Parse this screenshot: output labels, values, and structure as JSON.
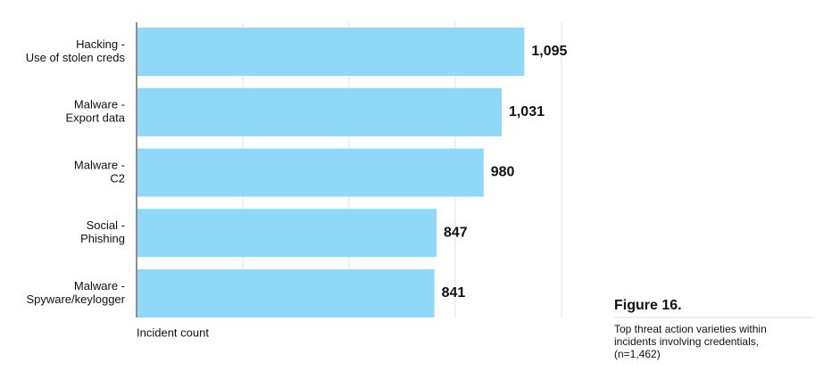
{
  "chart_data": {
    "type": "bar",
    "orientation": "horizontal",
    "categories": [
      [
        "Hacking -",
        "Use of stolen creds"
      ],
      [
        "Malware -",
        "Export data"
      ],
      [
        "Malware -",
        "C2"
      ],
      [
        "Social -",
        "Phishing"
      ],
      [
        "Malware -",
        "Spyware/keylogger"
      ]
    ],
    "values": [
      1095,
      1031,
      980,
      847,
      841
    ],
    "value_labels": [
      "1,095",
      "1,031",
      "980",
      "847",
      "841"
    ],
    "color": "#8fd8f8",
    "xlim": [
      0,
      1200
    ],
    "xticks": [
      0,
      300,
      600,
      900,
      1200
    ],
    "grid": true,
    "xlabel": "Incident count",
    "figure_label": "Figure 16.",
    "caption": [
      "Top threat action varieties within",
      "incidents involving credentials,",
      "(n=1,462)"
    ]
  }
}
